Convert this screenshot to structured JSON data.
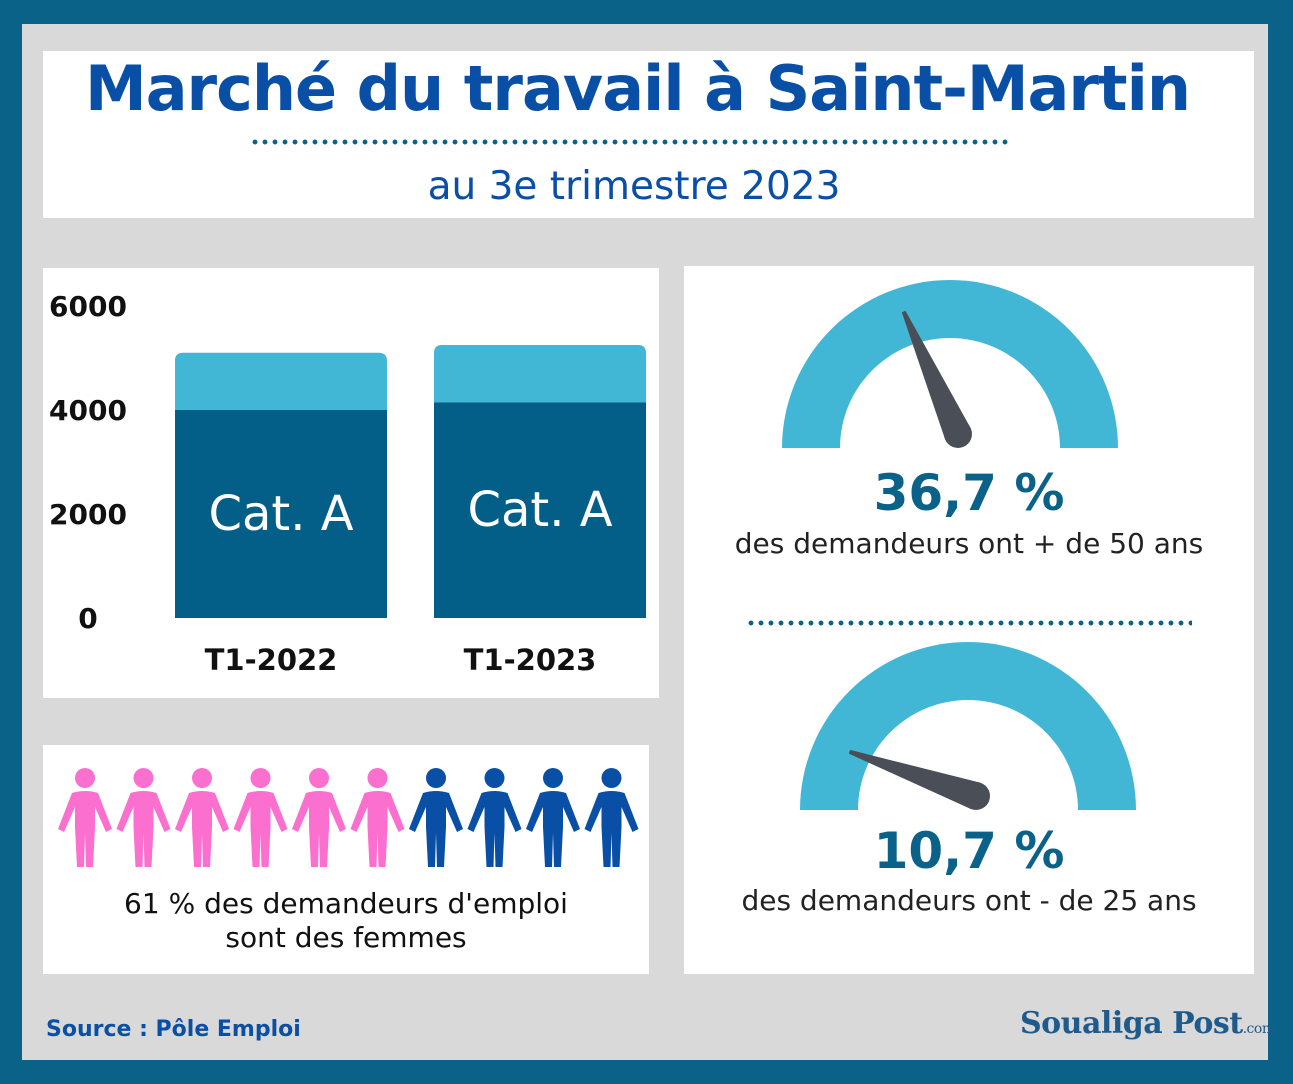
{
  "header": {
    "title": "Marché du travail à Saint-Martin",
    "subtitle": "au 3e trimestre 2023"
  },
  "chart_data": [
    {
      "type": "bar",
      "stacked": true,
      "categories": [
        "T1-2022",
        "T1-2023"
      ],
      "series": [
        {
          "name": "Cat. A",
          "values": [
            4000,
            4150
          ],
          "color": "#035f87"
        },
        {
          "values": [
            1100,
            1100
          ],
          "color": "#42b7d5"
        }
      ],
      "bar_label": "Cat. A",
      "ylim": [
        0,
        6000
      ],
      "yticks": [
        "6000",
        "4000",
        "2000",
        "0"
      ],
      "ytick_values": [
        6000,
        4000,
        2000,
        0
      ],
      "grid": false,
      "legend": "none"
    },
    {
      "type": "gauge",
      "value": 36.7,
      "range": [
        0,
        100
      ],
      "label": "36,7 %",
      "caption": "des demandeurs ont + de 50 ans"
    },
    {
      "type": "gauge",
      "value": 10.7,
      "range": [
        0,
        100
      ],
      "label": "10,7 %",
      "caption": "des demandeurs ont - de 25 ans"
    },
    {
      "type": "pictogram",
      "total": 10,
      "counts": {
        "women": 6,
        "men": 4
      },
      "colors": {
        "women": "#fb6fcf",
        "men": "#0a4fa6"
      },
      "caption_line1": "61 % des demandeurs d'emploi",
      "caption_line2": "sont des femmes"
    }
  ],
  "colors": {
    "frame": "#0b6289",
    "background": "#d9d9d9",
    "gauge_arc": "#42b7d5",
    "needle": "#4a4f57",
    "accent_text": "#0a4fa6",
    "value_text": "#0b6289"
  },
  "icons": {
    "person": "person-icon"
  },
  "footer": {
    "source": "Source : Pôle Emploi",
    "brand": "Soualiga Post",
    "brand_suffix": ".com"
  }
}
